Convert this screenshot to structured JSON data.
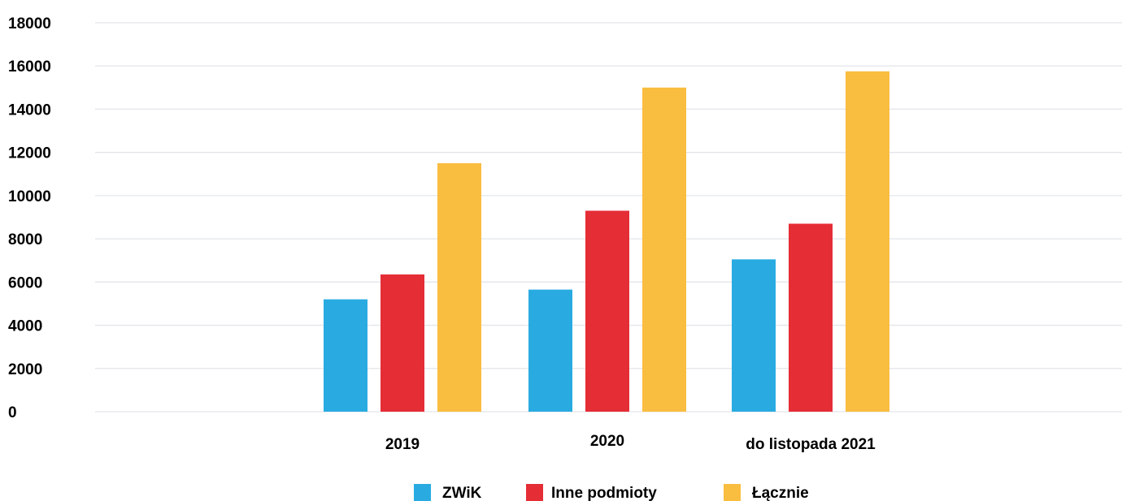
{
  "chart_data": {
    "type": "bar",
    "categories": [
      "2019",
      "2020",
      "do listopada 2021"
    ],
    "series": [
      {
        "name": "ZWiK",
        "color": "#29abe2",
        "values": [
          5200,
          5650,
          7050
        ]
      },
      {
        "name": "Inne podmioty",
        "color": "#e52d36",
        "values": [
          6350,
          9300,
          8700
        ]
      },
      {
        "name": "Łącznie",
        "color": "#f9bd40",
        "values": [
          11500,
          15000,
          15750
        ]
      }
    ],
    "yticks": [
      "0",
      "2000",
      "4000",
      "6000",
      "8000",
      "10000",
      "12000",
      "14000",
      "16000",
      "18000"
    ],
    "ylim": [
      0,
      18000
    ],
    "grid": true,
    "legend": "bottom-center"
  }
}
